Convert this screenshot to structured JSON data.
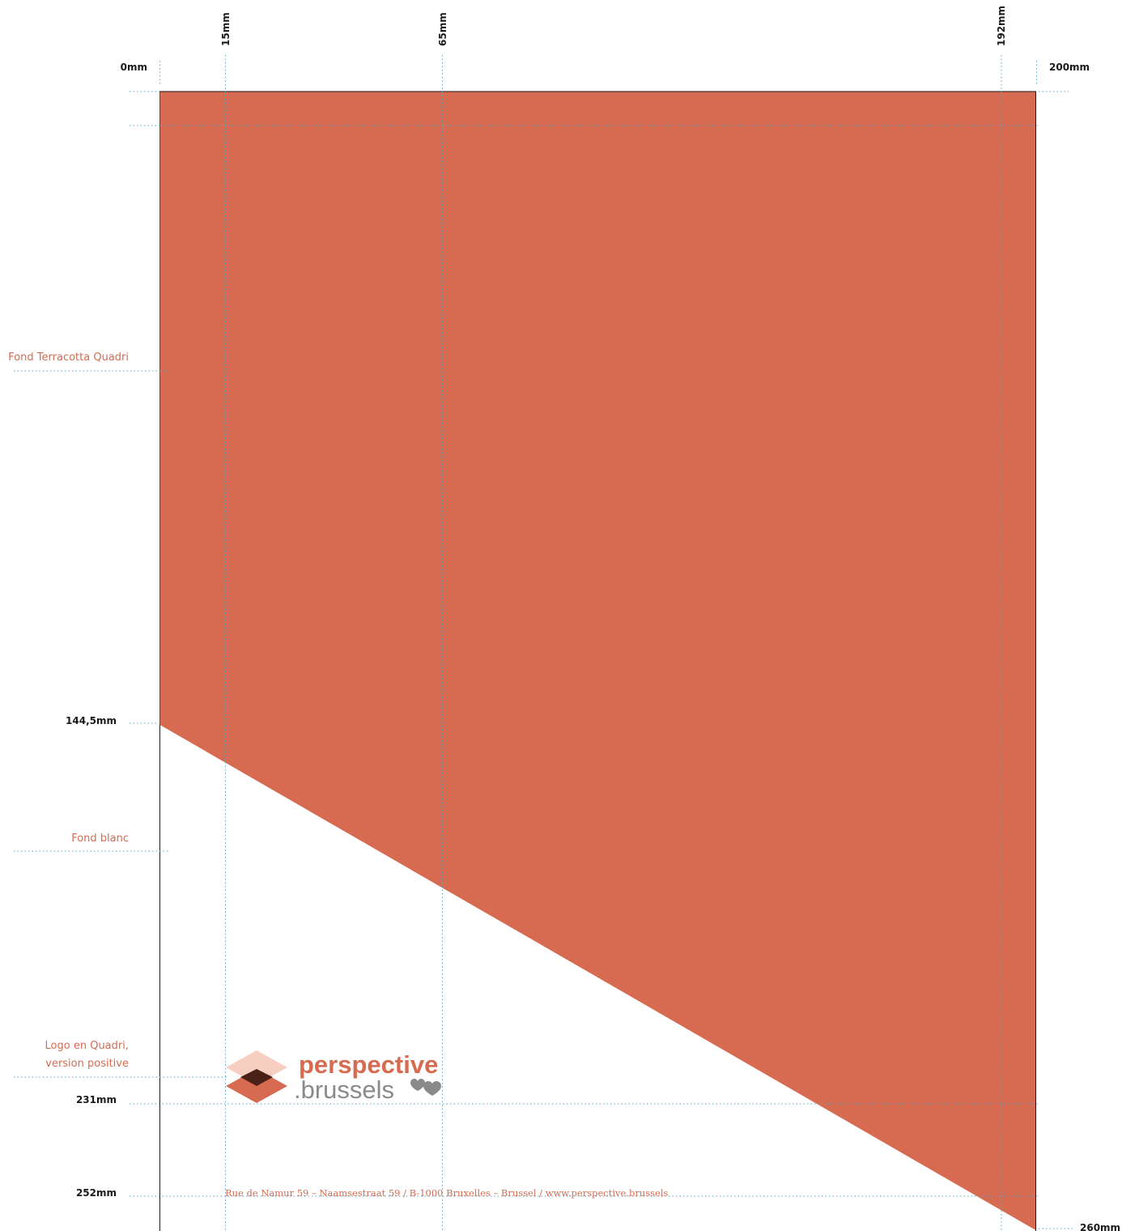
{
  "colors": {
    "terracotta": "#d66b51",
    "guide": "#55aacc",
    "logo_light": "#f6cfc0",
    "logo_dark": "#4a2017",
    "logo_grey": "#8a8a8a",
    "note_text": "#d66b51"
  },
  "rulers": {
    "top": {
      "x_0": "0mm",
      "x_15": "15mm",
      "x_65": "65mm",
      "x_192": "192mm",
      "x_200": "200mm"
    },
    "left": {
      "y_144": "144,5mm",
      "y_231": "231mm",
      "y_252": "252mm",
      "y_260": "260mm"
    }
  },
  "annotations": {
    "terracotta_background": "Fond Terracotta Quadri",
    "white_background": "Fond blanc",
    "logo_line1": "Logo en Quadri,",
    "logo_line2": "version positive"
  },
  "logo": {
    "word1": "perspective",
    "word2": ".brussels",
    "heart_icon": "two-hearts-icon"
  },
  "footer": {
    "address": "Rue de Namur 59 – Naamsestraat 59 / B-1000 Bruxelles – Brussel / www.perspective.brussels"
  }
}
